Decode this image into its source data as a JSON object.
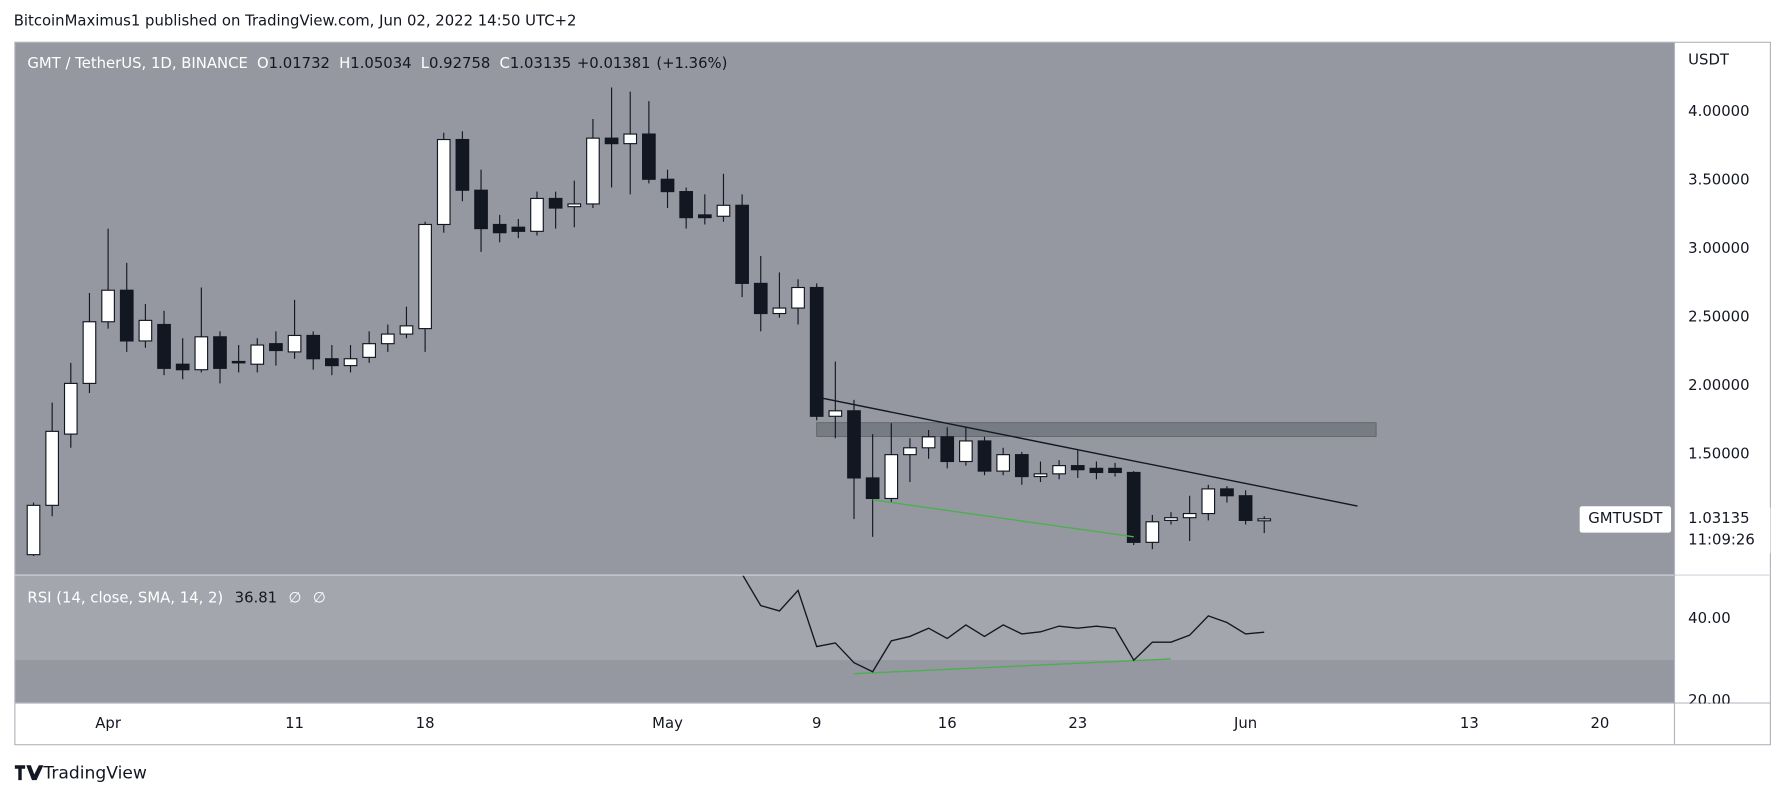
{
  "header": {
    "author_line": "BitcoinMaximus1 published on TradingView.com, Jun 02, 2022 14:50 UTC+2",
    "brand": "TradingView"
  },
  "chart_data": {
    "type": "candlestick",
    "title": "GMT / TetherUS, 1D, BINANCE",
    "ohlc_labels": [
      "O",
      "H",
      "L",
      "C"
    ],
    "change": "+0.01381",
    "change_pct": "(+1.36%)",
    "x": [
      "2022-03-28",
      "2022-03-29",
      "2022-03-30",
      "2022-03-31",
      "2022-04-01",
      "2022-04-02",
      "2022-04-03",
      "2022-04-04",
      "2022-04-05",
      "2022-04-06",
      "2022-04-07",
      "2022-04-08",
      "2022-04-09",
      "2022-04-10",
      "2022-04-11",
      "2022-04-12",
      "2022-04-13",
      "2022-04-14",
      "2022-04-15",
      "2022-04-16",
      "2022-04-17",
      "2022-04-18",
      "2022-04-19",
      "2022-04-20",
      "2022-04-21",
      "2022-04-22",
      "2022-04-23",
      "2022-04-24",
      "2022-04-25",
      "2022-04-26",
      "2022-04-27",
      "2022-04-28",
      "2022-04-29",
      "2022-04-30",
      "2022-05-01",
      "2022-05-02",
      "2022-05-03",
      "2022-05-04",
      "2022-05-05",
      "2022-05-06",
      "2022-05-07",
      "2022-05-08",
      "2022-05-09",
      "2022-05-10",
      "2022-05-11",
      "2022-05-12",
      "2022-05-13",
      "2022-05-14",
      "2022-05-15",
      "2022-05-16",
      "2022-05-17",
      "2022-05-18",
      "2022-05-19",
      "2022-05-20",
      "2022-05-21",
      "2022-05-22",
      "2022-05-23",
      "2022-05-24",
      "2022-05-25",
      "2022-05-26",
      "2022-05-27",
      "2022-05-28",
      "2022-05-29",
      "2022-05-30",
      "2022-05-31",
      "2022-06-01",
      "2022-06-02"
    ],
    "open": [
      0.77,
      1.13,
      1.65,
      2.02,
      2.47,
      2.7,
      2.33,
      2.45,
      2.16,
      2.12,
      2.36,
      2.18,
      2.16,
      2.31,
      2.25,
      2.37,
      2.2,
      2.15,
      2.21,
      2.31,
      2.38,
      2.42,
      3.18,
      3.8,
      3.43,
      3.18,
      3.16,
      3.13,
      3.37,
      3.31,
      3.33,
      3.81,
      3.77,
      3.84,
      3.51,
      3.42,
      3.25,
      3.24,
      3.32,
      2.75,
      2.53,
      2.57,
      2.72,
      1.78,
      1.82,
      1.33,
      1.18,
      1.5,
      1.55,
      1.63,
      1.45,
      1.6,
      1.38,
      1.5,
      1.34,
      1.36,
      1.42,
      1.4,
      1.4,
      1.37,
      0.86,
      1.02,
      1.04,
      1.07,
      1.25,
      1.2,
      1.01732
    ],
    "high": [
      1.15,
      1.88,
      2.17,
      2.68,
      3.15,
      2.9,
      2.6,
      2.55,
      2.35,
      2.72,
      2.4,
      2.3,
      2.35,
      2.4,
      2.63,
      2.4,
      2.3,
      2.3,
      2.4,
      2.45,
      2.58,
      3.2,
      3.85,
      3.86,
      3.58,
      3.25,
      3.22,
      3.42,
      3.42,
      3.5,
      3.95,
      4.18,
      4.15,
      4.08,
      3.58,
      3.45,
      3.4,
      3.55,
      3.4,
      2.95,
      2.83,
      2.78,
      2.75,
      2.18,
      1.9,
      1.65,
      1.73,
      1.62,
      1.68,
      1.7,
      1.7,
      1.63,
      1.55,
      1.52,
      1.45,
      1.46,
      1.53,
      1.45,
      1.44,
      1.38,
      1.06,
      1.08,
      1.2,
      1.28,
      1.27,
      1.24,
      1.05034
    ],
    "low": [
      0.76,
      1.05,
      1.55,
      1.95,
      2.42,
      2.25,
      2.28,
      2.08,
      2.05,
      2.1,
      2.02,
      2.1,
      2.1,
      2.15,
      2.2,
      2.12,
      2.08,
      2.1,
      2.17,
      2.25,
      2.35,
      2.25,
      3.12,
      3.35,
      2.98,
      3.05,
      3.08,
      3.1,
      3.15,
      3.16,
      3.3,
      3.45,
      3.4,
      3.48,
      3.3,
      3.15,
      3.18,
      3.2,
      2.65,
      2.4,
      2.5,
      2.45,
      1.75,
      1.62,
      1.03,
      0.9,
      1.15,
      1.3,
      1.47,
      1.4,
      1.42,
      1.35,
      1.35,
      1.28,
      1.3,
      1.32,
      1.33,
      1.32,
      1.34,
      0.84,
      0.81,
      0.99,
      0.87,
      1.02,
      1.15,
      0.99,
      0.92758
    ],
    "close": [
      1.13,
      1.67,
      2.02,
      2.47,
      2.7,
      2.33,
      2.48,
      2.13,
      2.12,
      2.36,
      2.13,
      2.17,
      2.3,
      2.26,
      2.37,
      2.2,
      2.15,
      2.2,
      2.31,
      2.38,
      2.44,
      3.18,
      3.8,
      3.43,
      3.15,
      3.12,
      3.13,
      3.37,
      3.3,
      3.33,
      3.81,
      3.77,
      3.84,
      3.51,
      3.42,
      3.23,
      3.23,
      3.32,
      2.75,
      2.53,
      2.57,
      2.72,
      1.78,
      1.82,
      1.33,
      1.18,
      1.5,
      1.55,
      1.63,
      1.45,
      1.6,
      1.38,
      1.5,
      1.34,
      1.36,
      1.42,
      1.39,
      1.37,
      1.37,
      0.86,
      1.01,
      1.04,
      1.07,
      1.25,
      1.2,
      1.02,
      1.03135
    ],
    "up_color": "#ffffff",
    "down_color": "#131722",
    "background": "#9598a1",
    "grid": false,
    "xlim": [
      "2022-03-27",
      "2022-06-24"
    ],
    "xticks": [
      {
        "value": "2022-04-01",
        "label": "Apr"
      },
      {
        "value": "2022-04-11",
        "label": "11"
      },
      {
        "value": "2022-04-18",
        "label": "18"
      },
      {
        "value": "2022-05-01",
        "label": "May"
      },
      {
        "value": "2022-05-09",
        "label": "9"
      },
      {
        "value": "2022-05-16",
        "label": "16"
      },
      {
        "value": "2022-05-23",
        "label": "23"
      },
      {
        "value": "2022-06-01",
        "label": "Jun"
      },
      {
        "value": "2022-06-13",
        "label": "13"
      },
      {
        "value": "2022-06-20",
        "label": "20"
      }
    ],
    "ylim": [
      0.625,
      4.51
    ],
    "yticks": [
      {
        "value": 1.5,
        "label": "1.50000"
      },
      {
        "value": 2,
        "label": "2.00000"
      },
      {
        "value": 2.5,
        "label": "2.50000"
      },
      {
        "value": 3,
        "label": "3.00000"
      },
      {
        "value": 3.5,
        "label": "3.50000"
      },
      {
        "value": 4,
        "label": "4.00000"
      }
    ],
    "y_axis_label": "USDT",
    "symbol": "GMTUSDT",
    "countdown": "11:09:26",
    "lines": [
      {
        "x": [
          "2022-05-09",
          "2022-06-07"
        ],
        "y": [
          1.92,
          1.125
        ],
        "color": "#131722"
      },
      {
        "x": [
          "2022-05-12",
          "2022-05-26"
        ],
        "y": [
          1.17,
          0.9
        ],
        "color": "#4caf50"
      }
    ],
    "zone": {
      "x": [
        "2022-05-09",
        "2022-06-08"
      ],
      "y": [
        1.633,
        1.733
      ],
      "color": "#6e717a"
    },
    "indicator": {
      "type": "line",
      "title": "RSI (14, close, SMA, 14, 2)",
      "flags": [
        "∅",
        "∅"
      ],
      "color": "#131722",
      "values": [
        null,
        null,
        null,
        null,
        null,
        null,
        null,
        null,
        null,
        null,
        null,
        null,
        null,
        null,
        null,
        null,
        null,
        null,
        null,
        null,
        null,
        null,
        null,
        null,
        null,
        null,
        null,
        null,
        null,
        null,
        null,
        null,
        null,
        null,
        null,
        null,
        null,
        null,
        51,
        43.3,
        42,
        47,
        33.3,
        34.2,
        29.4,
        27.2,
        34.7,
        35.8,
        37.8,
        35.3,
        38.6,
        35.8,
        38.6,
        36.4,
        36.9,
        38.3,
        37.8,
        38.3,
        37.8,
        30,
        34.4,
        34.4,
        36.1,
        40.8,
        39.2,
        36.4,
        36.81
      ],
      "ylim": [
        19.7,
        50.6
      ],
      "yticks": [
        {
          "value": 20,
          "label": "20.00"
        },
        {
          "value": 40,
          "label": "40.00"
        }
      ],
      "band": [
        30,
        70
      ],
      "band_color": "#a3a6ad",
      "lines": [
        {
          "x": [
            "2022-05-11",
            "2022-05-28"
          ],
          "y": [
            26.7,
            30.3
          ],
          "color": "#4caf50"
        }
      ]
    }
  }
}
